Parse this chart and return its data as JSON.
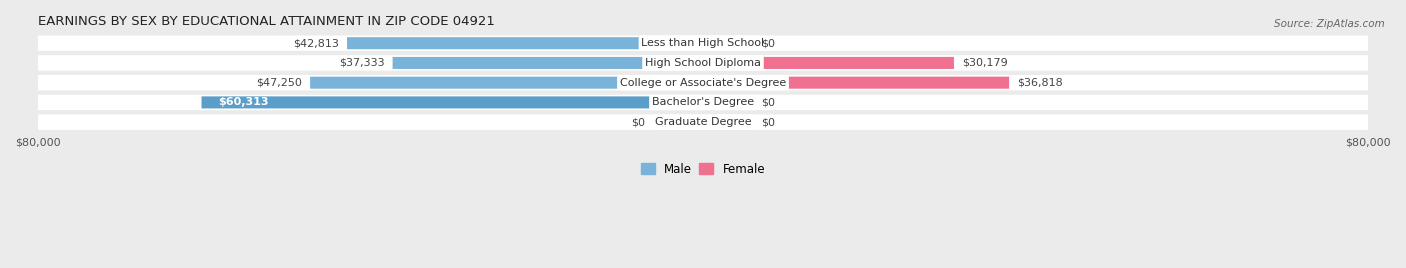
{
  "title": "EARNINGS BY SEX BY EDUCATIONAL ATTAINMENT IN ZIP CODE 04921",
  "source": "Source: ZipAtlas.com",
  "categories": [
    "Less than High School",
    "High School Diploma",
    "College or Associate's Degree",
    "Bachelor's Degree",
    "Graduate Degree"
  ],
  "male_values": [
    42813,
    37333,
    47250,
    60313,
    0
  ],
  "female_values": [
    0,
    30179,
    36818,
    0,
    0
  ],
  "male_labels": [
    "$42,813",
    "$37,333",
    "$47,250",
    "$60,313",
    "$0"
  ],
  "female_labels": [
    "$0",
    "$30,179",
    "$36,818",
    "$0",
    "$0"
  ],
  "male_color_normal": "#7ab3d9",
  "male_color_strong": "#5b9ec9",
  "male_color_light": "#aac8e8",
  "female_color_normal": "#f07090",
  "female_color_light": "#f5b0c5",
  "max_value": 80000,
  "stub_size": 6000,
  "background_color": "#ebebeb",
  "row_bg_color": "#ffffff",
  "title_fontsize": 9.5,
  "source_fontsize": 7.5,
  "label_fontsize": 8,
  "tick_fontsize": 8
}
